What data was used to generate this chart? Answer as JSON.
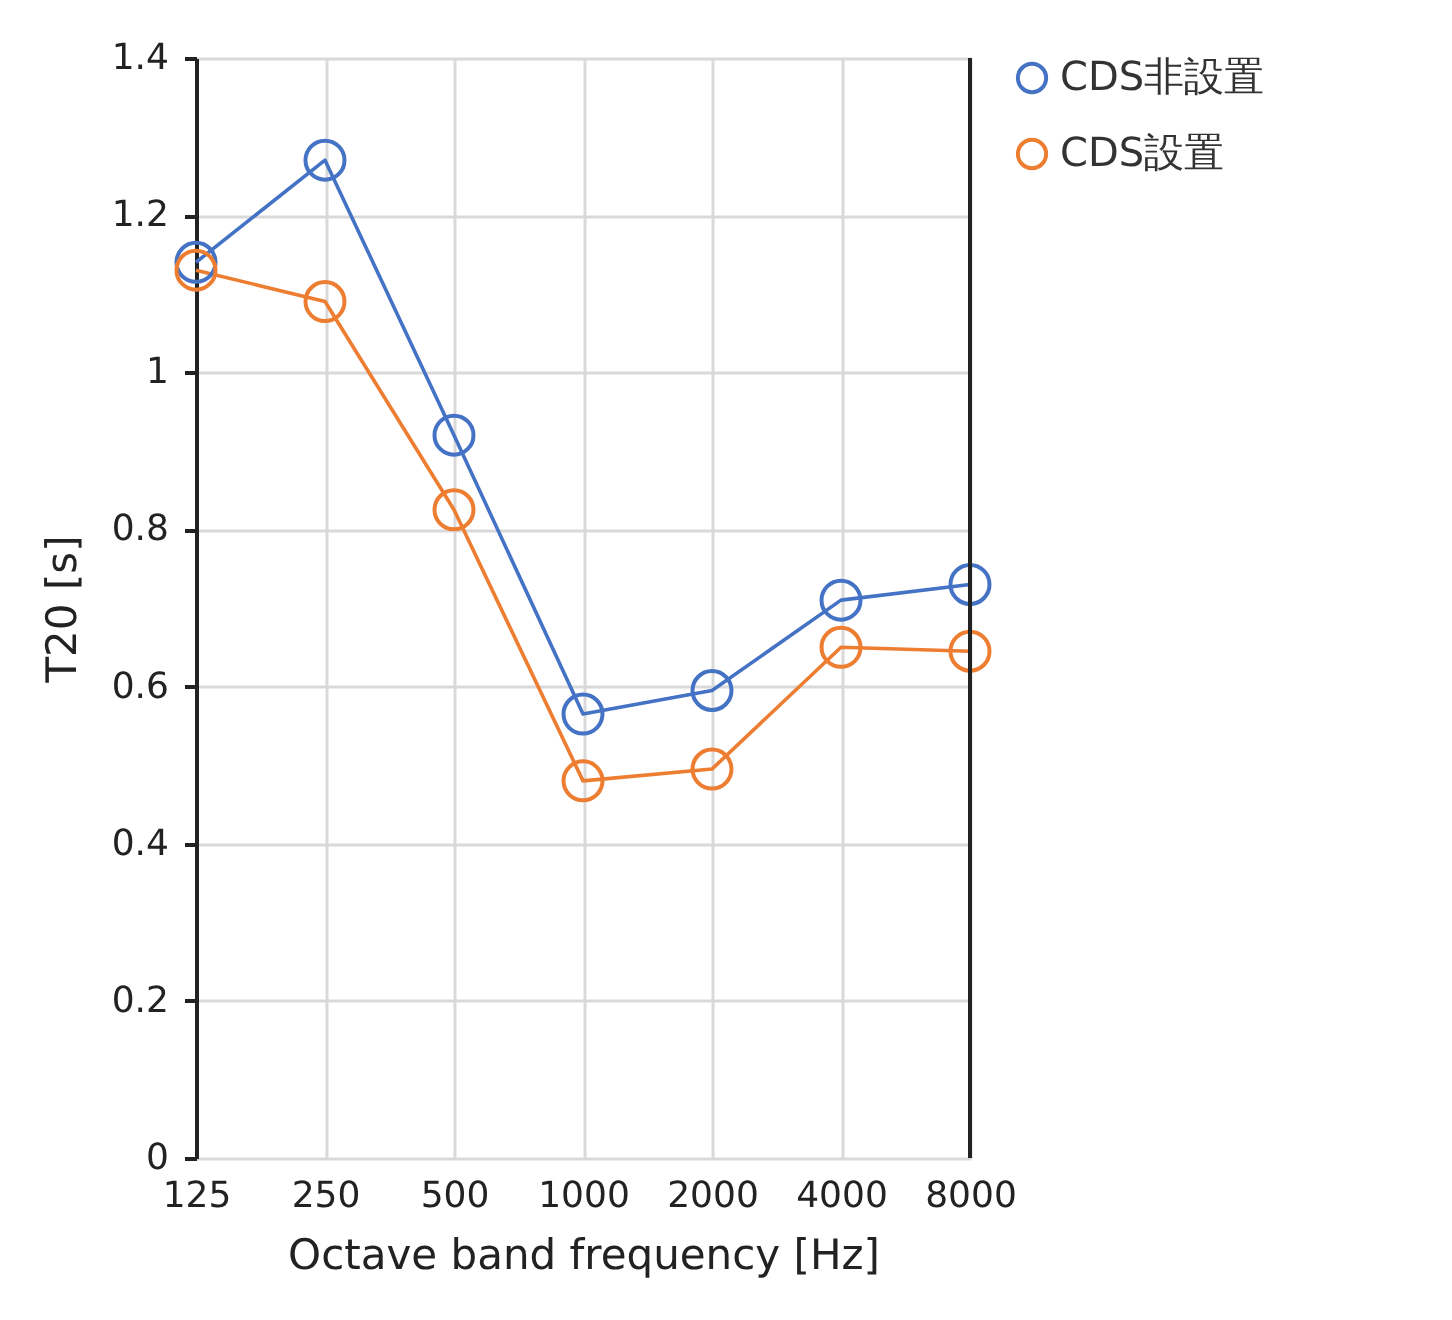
{
  "chart_data": {
    "type": "line",
    "xlabel": "Octave band frequency [Hz]",
    "ylabel": "T20 [s]",
    "categories": [
      "125",
      "250",
      "500",
      "1000",
      "2000",
      "4000",
      "8000"
    ],
    "series": [
      {
        "name": "CDS非設置",
        "color": "#4472c4",
        "values": [
          1.14,
          1.27,
          0.92,
          0.565,
          0.595,
          0.71,
          0.73
        ]
      },
      {
        "name": "CDS設置",
        "color": "#ed7d31",
        "values": [
          1.13,
          1.09,
          0.825,
          0.48,
          0.495,
          0.65,
          0.645
        ]
      }
    ],
    "ylim": [
      0,
      1.4
    ],
    "yticks": [
      0,
      0.2,
      0.4,
      0.6,
      0.8,
      1,
      1.2,
      1.4
    ],
    "grid": true,
    "legend": "top right",
    "marker": "circle",
    "line_style": "solid"
  }
}
